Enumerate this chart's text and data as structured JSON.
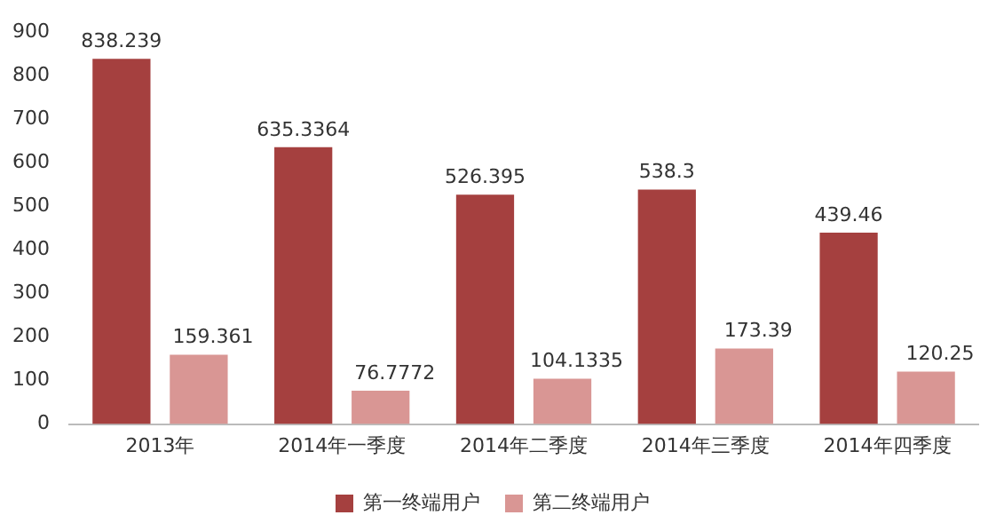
{
  "chart_data": {
    "type": "bar",
    "categories": [
      "2013年",
      "2014年一季度",
      "2014年二季度",
      "2014年三季度",
      "2014年四季度"
    ],
    "series": [
      {
        "name": "第一终端用户",
        "color": "#a5403f",
        "values": [
          838.239,
          635.3364,
          526.395,
          538.3,
          439.46
        ]
      },
      {
        "name": "第二终端用户",
        "color": "#d99694",
        "values": [
          159.361,
          76.7772,
          104.1335,
          173.39,
          120.25
        ]
      }
    ],
    "ylim": [
      0,
      900
    ],
    "yticks": [
      0,
      100,
      200,
      300,
      400,
      500,
      600,
      700,
      800,
      900
    ],
    "grid": false,
    "legend": "bottom",
    "data_labels": true
  }
}
